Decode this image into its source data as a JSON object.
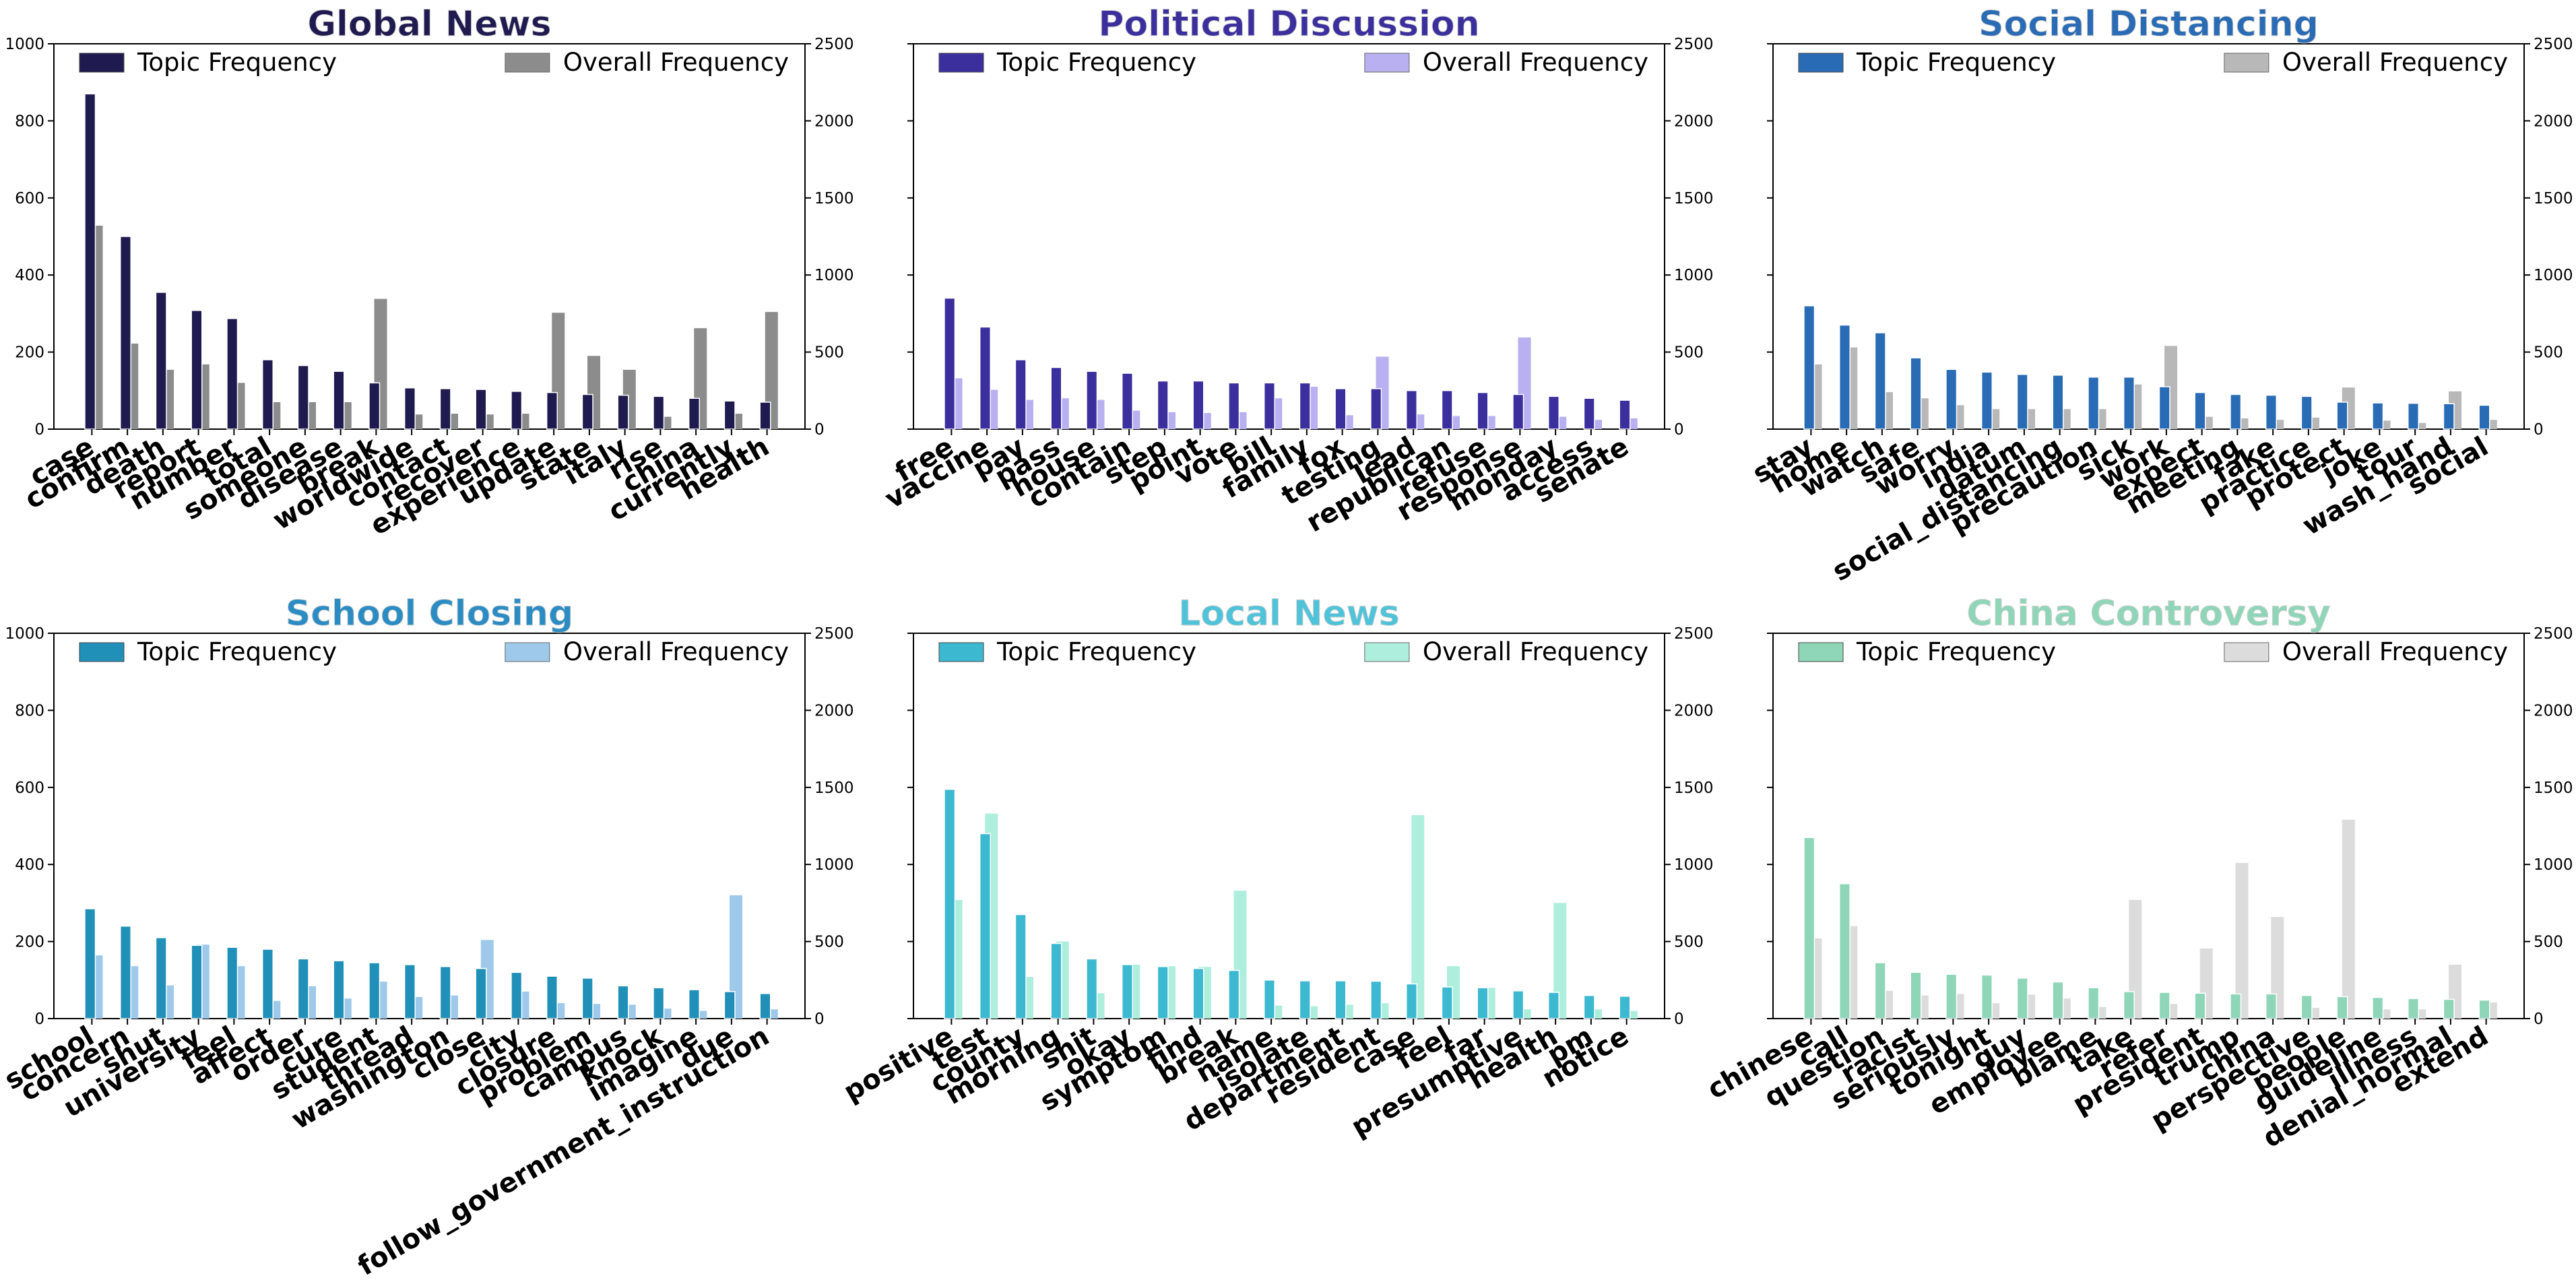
{
  "chart_data": [
    {
      "type": "bar",
      "title": "Global News",
      "title_color": "#1f1a4f",
      "topic_color": "#1f1a4f",
      "overall_color": "#8c8c8c",
      "legend": [
        "Topic Frequency",
        "Overall Frequency"
      ],
      "y_left": {
        "lim": [
          0,
          1000
        ],
        "ticks": [
          0,
          200,
          400,
          600,
          800,
          1000
        ],
        "show_labels": true
      },
      "y_right": {
        "lim": [
          0,
          2500
        ],
        "ticks": [
          0,
          500,
          1000,
          1500,
          2000,
          2500
        ]
      },
      "categories": [
        "case",
        "confirm",
        "death",
        "report",
        "number",
        "total",
        "someone",
        "disease",
        "break",
        "worldwide",
        "contact",
        "recover",
        "experience",
        "update",
        "state",
        "italy",
        "rise",
        "china",
        "currently",
        "health"
      ],
      "series": [
        {
          "name": "Topic Frequency",
          "axis": "left",
          "values": [
            870,
            500,
            355,
            308,
            287,
            180,
            165,
            150,
            120,
            107,
            105,
            103,
            98,
            95,
            90,
            88,
            85,
            80,
            73,
            70
          ]
        },
        {
          "name": "Overall Frequency",
          "axis": "right",
          "values": [
            1320,
            555,
            385,
            420,
            300,
            175,
            175,
            175,
            845,
            95,
            100,
            95,
            100,
            755,
            475,
            385,
            80,
            655,
            100,
            760
          ]
        }
      ]
    },
    {
      "type": "bar",
      "title": "Political Discussion",
      "title_color": "#3b2f9e",
      "topic_color": "#3b2f9e",
      "overall_color": "#b8b0f0",
      "legend": [
        "Topic Frequency",
        "Overall Frequency"
      ],
      "y_left": {
        "lim": [
          0,
          1000
        ],
        "ticks": [
          0,
          200,
          400,
          600,
          800,
          1000
        ],
        "show_labels": false
      },
      "y_right": {
        "lim": [
          0,
          2500
        ],
        "ticks": [
          0,
          500,
          1000,
          1500,
          2000,
          2500
        ]
      },
      "categories": [
        "free",
        "vaccine",
        "pay",
        "pass",
        "house",
        "contain",
        "step",
        "point",
        "vote",
        "bill",
        "family",
        "fox",
        "testing",
        "lead",
        "republican",
        "refuse",
        "response",
        "monday",
        "access",
        "senate"
      ],
      "series": [
        {
          "name": "Topic Frequency",
          "axis": "left",
          "values": [
            340,
            265,
            180,
            160,
            150,
            145,
            125,
            125,
            120,
            120,
            120,
            105,
            105,
            100,
            100,
            95,
            90,
            85,
            80,
            75
          ]
        },
        {
          "name": "Overall Frequency",
          "axis": "right",
          "values": [
            330,
            255,
            190,
            200,
            190,
            120,
            110,
            105,
            110,
            200,
            275,
            90,
            470,
            95,
            85,
            85,
            595,
            80,
            60,
            70
          ]
        }
      ]
    },
    {
      "type": "bar",
      "title": "Social Distancing",
      "title_color": "#2a6bb5",
      "topic_color": "#2a6bb5",
      "overall_color": "#b8b8b8",
      "legend": [
        "Topic Frequency",
        "Overall Frequency"
      ],
      "y_left": {
        "lim": [
          0,
          1000
        ],
        "ticks": [
          0,
          200,
          400,
          600,
          800,
          1000
        ],
        "show_labels": false
      },
      "y_right": {
        "lim": [
          0,
          2500
        ],
        "ticks": [
          0,
          500,
          1000,
          1500,
          2000,
          2500
        ]
      },
      "categories": [
        "stay",
        "home",
        "watch",
        "safe",
        "worry",
        "india",
        "datum",
        "social_distancing",
        "precaution",
        "sick",
        "work",
        "expect",
        "meeting",
        "fake",
        "practice",
        "protect",
        "joke",
        "tour",
        "wash_hand",
        "social"
      ],
      "series": [
        {
          "name": "Topic Frequency",
          "axis": "left",
          "values": [
            320,
            270,
            250,
            185,
            155,
            148,
            142,
            140,
            135,
            135,
            110,
            95,
            90,
            88,
            85,
            70,
            68,
            67,
            66,
            62
          ]
        },
        {
          "name": "Overall Frequency",
          "axis": "right",
          "values": [
            420,
            530,
            240,
            200,
            155,
            130,
            130,
            130,
            130,
            290,
            540,
            80,
            70,
            60,
            75,
            270,
            55,
            40,
            245,
            60
          ]
        }
      ]
    },
    {
      "type": "bar",
      "title": "School Closing",
      "title_color": "#2b8cc4",
      "topic_color": "#2190b8",
      "overall_color": "#9ec9ea",
      "legend": [
        "Topic Frequency",
        "Overall Frequency"
      ],
      "y_left": {
        "lim": [
          0,
          1000
        ],
        "ticks": [
          0,
          200,
          400,
          600,
          800,
          1000
        ],
        "show_labels": true
      },
      "y_right": {
        "lim": [
          0,
          2500
        ],
        "ticks": [
          0,
          500,
          1000,
          1500,
          2000,
          2500
        ]
      },
      "categories": [
        "school",
        "concern",
        "shut",
        "university",
        "feel",
        "affect",
        "order",
        "cure",
        "student",
        "thread",
        "washington",
        "close",
        "city",
        "closure",
        "problem",
        "campus",
        "knock",
        "imagine",
        "due",
        "follow_government_instruction"
      ],
      "series": [
        {
          "name": "Topic Frequency",
          "axis": "left",
          "values": [
            285,
            240,
            210,
            190,
            185,
            180,
            155,
            150,
            145,
            140,
            135,
            130,
            120,
            110,
            105,
            85,
            80,
            75,
            70,
            65
          ]
        },
        {
          "name": "Overall Frequency",
          "axis": "right",
          "values": [
            410,
            340,
            215,
            480,
            340,
            115,
            210,
            130,
            240,
            140,
            150,
            510,
            175,
            100,
            95,
            90,
            65,
            50,
            800,
            60
          ]
        }
      ]
    },
    {
      "type": "bar",
      "title": "Local News",
      "title_color": "#4fc3d9",
      "topic_color": "#3cb9d1",
      "overall_color": "#aeeedd",
      "legend": [
        "Topic Frequency",
        "Overall Frequency"
      ],
      "y_left": {
        "lim": [
          0,
          1000
        ],
        "ticks": [
          0,
          200,
          400,
          600,
          800,
          1000
        ],
        "show_labels": false
      },
      "y_right": {
        "lim": [
          0,
          2500
        ],
        "ticks": [
          0,
          500,
          1000,
          1500,
          2000,
          2500
        ]
      },
      "categories": [
        "positive",
        "test",
        "county",
        "morning",
        "shit",
        "okay",
        "symptom",
        "find",
        "break",
        "name",
        "isolate",
        "department",
        "resident",
        "case",
        "feel",
        "far",
        "presumptive",
        "health",
        "pm",
        "notice"
      ],
      "series": [
        {
          "name": "Topic Frequency",
          "axis": "left",
          "values": [
            595,
            480,
            270,
            195,
            155,
            140,
            135,
            130,
            125,
            100,
            98,
            98,
            97,
            90,
            82,
            80,
            72,
            68,
            60,
            58
          ]
        },
        {
          "name": "Overall Frequency",
          "axis": "right",
          "values": [
            770,
            1330,
            270,
            500,
            165,
            350,
            340,
            335,
            830,
            85,
            80,
            90,
            100,
            1320,
            340,
            200,
            60,
            750,
            60,
            50
          ]
        }
      ]
    },
    {
      "type": "bar",
      "title": "China Controversy",
      "title_color": "#8fd6b8",
      "topic_color": "#8fd6b8",
      "overall_color": "#dcdcdc",
      "legend": [
        "Topic Frequency",
        "Overall Frequency"
      ],
      "y_left": {
        "lim": [
          0,
          1000
        ],
        "ticks": [
          0,
          200,
          400,
          600,
          800,
          1000
        ],
        "show_labels": false
      },
      "y_right": {
        "lim": [
          0,
          2500
        ],
        "ticks": [
          0,
          500,
          1000,
          1500,
          2000,
          2500
        ]
      },
      "categories": [
        "chinese",
        "call",
        "question",
        "racist",
        "seriously",
        "tonight",
        "guy",
        "employee",
        "blame",
        "take",
        "refer",
        "president",
        "trump",
        "china",
        "perspective",
        "people",
        "guideline",
        "illness",
        "denial_normal",
        "extend"
      ],
      "series": [
        {
          "name": "Topic Frequency",
          "axis": "left",
          "values": [
            470,
            350,
            145,
            120,
            115,
            113,
            105,
            95,
            80,
            70,
            68,
            66,
            64,
            64,
            60,
            57,
            55,
            52,
            50,
            48
          ]
        },
        {
          "name": "Overall Frequency",
          "axis": "right",
          "values": [
            520,
            600,
            180,
            150,
            160,
            100,
            155,
            130,
            75,
            770,
            95,
            455,
            1010,
            660,
            70,
            1290,
            60,
            60,
            350,
            105
          ]
        }
      ]
    }
  ]
}
